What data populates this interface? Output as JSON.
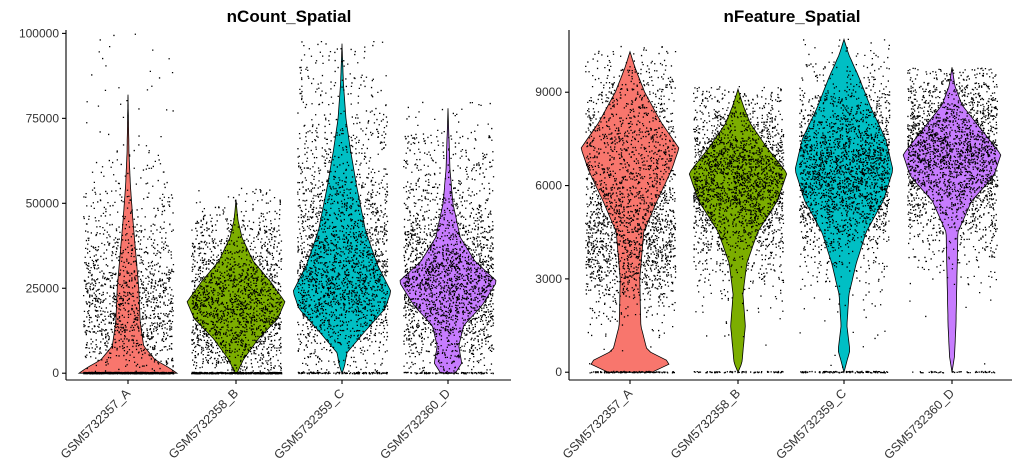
{
  "chart_data": [
    {
      "type": "violin",
      "title": "nCount_Spatial",
      "xlabel": "",
      "ylabel": "",
      "ylim": [
        -2000,
        101000
      ],
      "yticks": [
        0,
        25000,
        50000,
        75000,
        100000
      ],
      "ytick_labels": [
        "0",
        "25000",
        "50000",
        "75000",
        "100000"
      ],
      "categories": [
        "GSM5732357_A",
        "GSM5732358_B",
        "GSM5732359_C",
        "GSM5732360_D"
      ],
      "series": [
        {
          "category": "GSM5732357_A",
          "color": "#F8766D",
          "max": 82000,
          "profile": [
            [
              0,
              1.0
            ],
            [
              1500,
              0.85
            ],
            [
              4000,
              0.55
            ],
            [
              8000,
              0.32
            ],
            [
              15000,
              0.25
            ],
            [
              25000,
              0.22
            ],
            [
              35000,
              0.16
            ],
            [
              45000,
              0.1
            ],
            [
              55000,
              0.05
            ],
            [
              65000,
              0.02
            ],
            [
              82000,
              0.0
            ]
          ],
          "point_sources": [
            [
              0,
              0.42
            ],
            [
              0.5,
              0.5
            ],
            [
              18000,
              0.3
            ],
            [
              30000,
              0.24
            ],
            [
              50000,
              0.05
            ],
            [
              100000,
              0.02
            ]
          ]
        },
        {
          "category": "GSM5732358_B",
          "color": "#7CAE00",
          "max": 51000,
          "profile": [
            [
              0,
              0.02
            ],
            [
              4000,
              0.15
            ],
            [
              10000,
              0.45
            ],
            [
              16000,
              0.85
            ],
            [
              21000,
              1.0
            ],
            [
              27000,
              0.7
            ],
            [
              33000,
              0.35
            ],
            [
              40000,
              0.12
            ],
            [
              45000,
              0.04
            ],
            [
              51000,
              0.0
            ]
          ],
          "point_sources": [
            [
              0,
              0.15
            ],
            [
              0.5,
              0.5
            ],
            [
              20000,
              0.28
            ],
            [
              20000,
              0.4
            ],
            [
              38000,
              0.05
            ],
            [
              55000,
              0.02
            ]
          ]
        },
        {
          "category": "GSM5732359_C",
          "color": "#00BFC4",
          "max": 97000,
          "profile": [
            [
              0,
              0.0
            ],
            [
              2000,
              0.05
            ],
            [
              6000,
              0.1
            ],
            [
              12000,
              0.45
            ],
            [
              19000,
              0.88
            ],
            [
              24000,
              1.0
            ],
            [
              32000,
              0.72
            ],
            [
              42000,
              0.48
            ],
            [
              55000,
              0.3
            ],
            [
              65000,
              0.18
            ],
            [
              75000,
              0.08
            ],
            [
              85000,
              0.03
            ],
            [
              97000,
              0.0
            ]
          ],
          "point_sources": [
            [
              0,
              0.05
            ],
            [
              0.5,
              0.5
            ],
            [
              24000,
              0.3
            ],
            [
              40000,
              0.4
            ],
            [
              60000,
              0.2
            ],
            [
              98000,
              0.05
            ]
          ]
        },
        {
          "category": "GSM5732360_D",
          "color": "#C77CFF",
          "max": 78000,
          "profile": [
            [
              0,
              0.15
            ],
            [
              3000,
              0.28
            ],
            [
              8000,
              0.22
            ],
            [
              14000,
              0.32
            ],
            [
              20000,
              0.7
            ],
            [
              27000,
              1.0
            ],
            [
              33000,
              0.55
            ],
            [
              40000,
              0.25
            ],
            [
              50000,
              0.1
            ],
            [
              60000,
              0.04
            ],
            [
              78000,
              0.0
            ]
          ],
          "point_sources": [
            [
              0,
              0.03
            ],
            [
              0.5,
              0.5
            ],
            [
              27000,
              0.35
            ],
            [
              27000,
              0.3
            ],
            [
              45000,
              0.08
            ],
            [
              80000,
              0.02
            ]
          ]
        }
      ]
    },
    {
      "type": "violin",
      "title": "nFeature_Spatial",
      "xlabel": "",
      "ylabel": "",
      "ylim": [
        -250,
        11000
      ],
      "yticks": [
        0,
        3000,
        6000,
        9000
      ],
      "ytick_labels": [
        "0",
        "3000",
        "6000",
        "9000"
      ],
      "categories": [
        "GSM5732357_A",
        "GSM5732358_B",
        "GSM5732359_C",
        "GSM5732360_D"
      ],
      "series": [
        {
          "category": "GSM5732357_A",
          "color": "#F8766D",
          "max": 10300,
          "profile": [
            [
              0,
              0.45
            ],
            [
              300,
              0.85
            ],
            [
              700,
              0.35
            ],
            [
              1500,
              0.22
            ],
            [
              3000,
              0.2
            ],
            [
              4500,
              0.28
            ],
            [
              5500,
              0.55
            ],
            [
              6500,
              0.85
            ],
            [
              7200,
              1.0
            ],
            [
              8000,
              0.65
            ],
            [
              9000,
              0.3
            ],
            [
              9800,
              0.1
            ],
            [
              10300,
              0.0
            ]
          ],
          "point_sources": [
            [
              0,
              0.05
            ],
            [
              0.5,
              0.5
            ],
            [
              4000,
              0.45
            ],
            [
              7000,
              0.5
            ],
            [
              9500,
              0.02
            ],
            [
              10500,
              0.02
            ]
          ]
        },
        {
          "category": "GSM5732358_B",
          "color": "#7CAE00",
          "max": 9100,
          "profile": [
            [
              0,
              0.0
            ],
            [
              300,
              0.08
            ],
            [
              1500,
              0.15
            ],
            [
              2500,
              0.1
            ],
            [
              3500,
              0.18
            ],
            [
              4500,
              0.4
            ],
            [
              5500,
              0.8
            ],
            [
              6400,
              1.0
            ],
            [
              7200,
              0.6
            ],
            [
              8000,
              0.25
            ],
            [
              8600,
              0.1
            ],
            [
              9100,
              0.0
            ]
          ],
          "point_sources": [
            [
              0,
              0.03
            ],
            [
              0.5,
              0.5
            ],
            [
              6200,
              0.4
            ],
            [
              6200,
              0.6
            ],
            [
              8700,
              0.02
            ],
            [
              9200,
              0.02
            ]
          ]
        },
        {
          "category": "GSM5732359_C",
          "color": "#00BFC4",
          "max": 10700,
          "profile": [
            [
              0,
              0.0
            ],
            [
              300,
              0.05
            ],
            [
              700,
              0.12
            ],
            [
              1500,
              0.06
            ],
            [
              2500,
              0.1
            ],
            [
              3500,
              0.25
            ],
            [
              4500,
              0.45
            ],
            [
              5500,
              0.8
            ],
            [
              6500,
              1.0
            ],
            [
              7500,
              0.85
            ],
            [
              8500,
              0.55
            ],
            [
              9500,
              0.3
            ],
            [
              10200,
              0.1
            ],
            [
              10700,
              0.0
            ]
          ],
          "point_sources": [
            [
              0,
              0.04
            ],
            [
              0.5,
              0.5
            ],
            [
              6500,
              0.35
            ],
            [
              6500,
              0.6
            ],
            [
              10000,
              0.02
            ],
            [
              10800,
              0.02
            ]
          ]
        },
        {
          "category": "GSM5732360_D",
          "color": "#C77CFF",
          "max": 9800,
          "profile": [
            [
              0,
              0.0
            ],
            [
              500,
              0.05
            ],
            [
              1500,
              0.08
            ],
            [
              3000,
              0.1
            ],
            [
              4500,
              0.12
            ],
            [
              5500,
              0.4
            ],
            [
              6300,
              0.85
            ],
            [
              7000,
              1.0
            ],
            [
              7800,
              0.6
            ],
            [
              8600,
              0.2
            ],
            [
              9200,
              0.06
            ],
            [
              9800,
              0.0
            ]
          ],
          "point_sources": [
            [
              0,
              0.02
            ],
            [
              0.5,
              0.5
            ],
            [
              7000,
              0.4
            ],
            [
              7000,
              0.6
            ],
            [
              9400,
              0.02
            ],
            [
              9800,
              0.02
            ]
          ]
        }
      ]
    }
  ]
}
